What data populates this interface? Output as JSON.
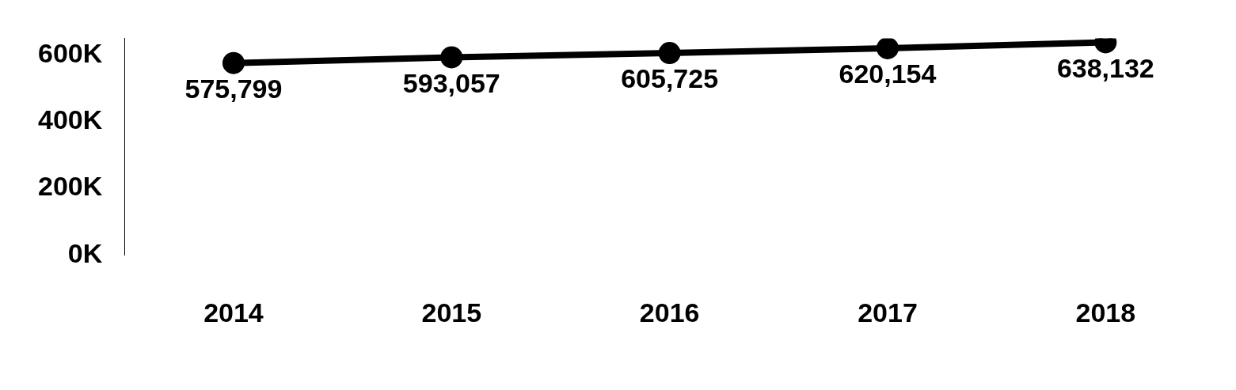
{
  "chart_data": {
    "type": "line",
    "categories": [
      "2014",
      "2015",
      "2016",
      "2017",
      "2018"
    ],
    "values": [
      575799,
      593057,
      605725,
      620154,
      638132
    ],
    "value_labels": [
      "575,799",
      "593,057",
      "605,725",
      "620,154",
      "638,132"
    ],
    "color": "#000000",
    "marker": "circle",
    "line_style": "solid",
    "data_labels": true,
    "grid": false,
    "ylim": [
      0,
      650000
    ],
    "yticks": [
      {
        "value": 0,
        "label": "0K"
      },
      {
        "value": 200000,
        "label": "200K"
      },
      {
        "value": 400000,
        "label": "400K"
      },
      {
        "value": 600000,
        "label": "600K"
      }
    ]
  }
}
